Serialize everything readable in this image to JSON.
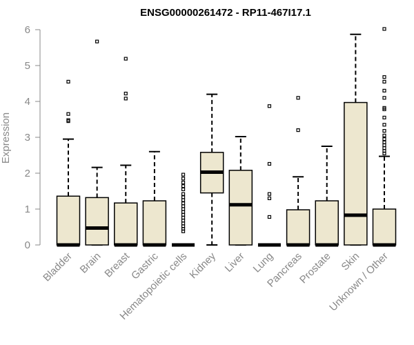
{
  "chart_data": {
    "type": "box",
    "title": "ENSG00000261472 - RP11-467I17.1",
    "ylabel": "Expression",
    "xlabel": "",
    "ylim": [
      0,
      6
    ],
    "yticks": [
      0,
      1,
      2,
      3,
      4,
      5,
      6
    ],
    "grid": false,
    "colors": {
      "box_fill": "#ede7cf",
      "box_stroke": "#000000",
      "axis": "#888888",
      "title": "#000000"
    },
    "categories": [
      "Bladder",
      "Brain",
      "Breast",
      "Gastric",
      "Hematopoietic cells",
      "Kidney",
      "Liver",
      "Lung",
      "Pancreas",
      "Prostate",
      "Skin",
      "Unknown / Other"
    ],
    "boxes": [
      {
        "category": "Bladder",
        "whisker_low": 0,
        "q1": 0,
        "median": 0,
        "q3": 1.36,
        "whisker_high": 2.95,
        "outliers": [
          3.45,
          3.48,
          3.65,
          4.55
        ]
      },
      {
        "category": "Brain",
        "whisker_low": 0,
        "q1": 0,
        "median": 0.47,
        "q3": 1.32,
        "whisker_high": 2.16,
        "outliers": [
          5.67
        ]
      },
      {
        "category": "Breast",
        "whisker_low": 0,
        "q1": 0,
        "median": 0,
        "q3": 1.17,
        "whisker_high": 2.22,
        "outliers": [
          4.08,
          4.22,
          5.19
        ]
      },
      {
        "category": "Gastric",
        "whisker_low": 0,
        "q1": 0,
        "median": 0,
        "q3": 1.23,
        "whisker_high": 2.6,
        "outliers": []
      },
      {
        "category": "Hematopoietic cells",
        "whisker_low": 0,
        "q1": 0,
        "median": 0,
        "q3": 0,
        "whisker_high": 0,
        "outliers": [
          0.38,
          0.45,
          0.52,
          0.6,
          0.68,
          0.76,
          0.84,
          0.92,
          1.0,
          1.08,
          1.16,
          1.25,
          1.33,
          1.42,
          1.55,
          1.64,
          1.74,
          1.85,
          1.96
        ]
      },
      {
        "category": "Kidney",
        "whisker_low": 0,
        "q1": 1.45,
        "median": 2.03,
        "q3": 2.58,
        "whisker_high": 4.2,
        "outliers": []
      },
      {
        "category": "Liver",
        "whisker_low": 0,
        "q1": 0,
        "median": 1.12,
        "q3": 2.08,
        "whisker_high": 3.02,
        "outliers": []
      },
      {
        "category": "Lung",
        "whisker_low": 0,
        "q1": 0,
        "median": 0,
        "q3": 0,
        "whisker_high": 0,
        "outliers": [
          0.78,
          1.3,
          1.42,
          2.26,
          3.87
        ]
      },
      {
        "category": "Pancreas",
        "whisker_low": 0,
        "q1": 0,
        "median": 0,
        "q3": 0.98,
        "whisker_high": 1.9,
        "outliers": [
          3.2,
          4.1
        ]
      },
      {
        "category": "Prostate",
        "whisker_low": 0,
        "q1": 0,
        "median": 0,
        "q3": 1.23,
        "whisker_high": 2.75,
        "outliers": []
      },
      {
        "category": "Skin",
        "whisker_low": 0,
        "q1": 0,
        "median": 0.83,
        "q3": 3.97,
        "whisker_high": 5.87,
        "outliers": []
      },
      {
        "category": "Unknown / Other",
        "whisker_low": 0,
        "q1": 0,
        "median": 0,
        "q3": 1.0,
        "whisker_high": 2.47,
        "outliers": [
          2.55,
          2.62,
          2.7,
          2.78,
          2.86,
          2.95,
          3.05,
          3.18,
          3.35,
          3.55,
          3.78,
          3.82,
          4.1,
          4.3,
          4.55,
          4.68,
          6.02
        ]
      }
    ]
  }
}
